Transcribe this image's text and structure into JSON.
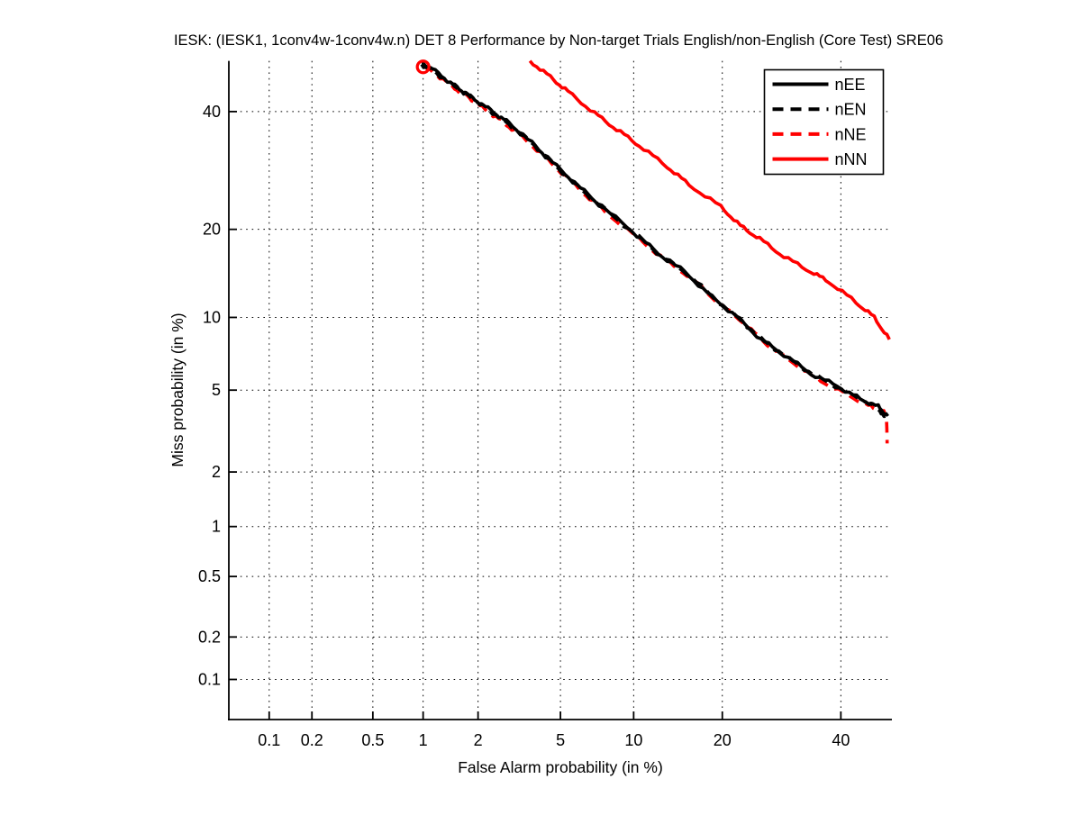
{
  "title": "IESK: (IESK1, 1conv4w-1conv4w.n) DET 8 Performance by Non-target Trials English/non-English (Core Test) SRE06",
  "axes": {
    "x_label": "False Alarm probability (in %)",
    "y_label": "Miss probability (in %)",
    "tick_labels": [
      "0.1",
      "0.2",
      "0.5",
      "1",
      "2",
      "5",
      "10",
      "20",
      "40"
    ],
    "tick_values_pct": [
      0.1,
      0.2,
      0.5,
      1,
      2,
      5,
      10,
      20,
      40
    ],
    "axis_min_pct": 0.05,
    "axis_max_pct": 50
  },
  "legend": {
    "position": "top-right",
    "entries": [
      {
        "label": "nEE",
        "color": "#000000",
        "style": "solid"
      },
      {
        "label": "nEN",
        "color": "#000000",
        "style": "dashed"
      },
      {
        "label": "nNE",
        "color": "#ff0000",
        "style": "dashed"
      },
      {
        "label": "nNN",
        "color": "#ff0000",
        "style": "solid"
      }
    ]
  },
  "colors": {
    "background": "#ffffff",
    "text": "#000000",
    "grid": "#000000",
    "black_curve": "#000000",
    "red_curve": "#ff0000"
  },
  "chart_data": {
    "type": "line",
    "subtype": "DET curve, probit scale on both axes, dotted grid at labeled ticks",
    "title": "IESK: (IESK1, 1conv4w-1conv4w.n) DET 8 Performance by Non-target Trials English/non-English (Core Test) SRE06",
    "xlabel": "False Alarm probability (in %)",
    "ylabel": "Miss probability (in %)",
    "xlim_pct": [
      0.05,
      50
    ],
    "ylim_pct": [
      0.05,
      50
    ],
    "grid": "dotted",
    "legend_position": "top-right inside",
    "start_marker": {
      "series": "nNE",
      "shape": "open-circle",
      "color": "#ff0000",
      "fa_pct": 1.0,
      "miss_pct": 48.8
    },
    "series": [
      {
        "name": "nNN",
        "color": "#ff0000",
        "style": "solid",
        "points_fa_miss_pct": [
          [
            3.62,
            50.0
          ],
          [
            4.5,
            46.8
          ],
          [
            5.4,
            43.9
          ],
          [
            7.0,
            39.7
          ],
          [
            8.6,
            36.6
          ],
          [
            10.5,
            33.6
          ],
          [
            13.2,
            29.9
          ],
          [
            15.7,
            26.8
          ],
          [
            19.8,
            23.3
          ],
          [
            22.6,
            20.5
          ],
          [
            25.6,
            18.7
          ],
          [
            29.6,
            16.4
          ],
          [
            34.4,
            14.6
          ],
          [
            37.7,
            13.5
          ],
          [
            42.9,
            11.4
          ],
          [
            46.5,
            10.0
          ],
          [
            49.5,
            8.2
          ]
        ]
      },
      {
        "name": "nNE",
        "color": "#ff0000",
        "style": "dashed",
        "points_fa_miss_pct": [
          [
            1.0,
            48.8
          ],
          [
            1.2,
            47.2
          ],
          [
            1.5,
            44.6
          ],
          [
            1.8,
            42.6
          ],
          [
            2.1,
            40.8
          ],
          [
            2.55,
            38.6
          ],
          [
            3.05,
            36.4
          ],
          [
            3.9,
            32.9
          ],
          [
            4.85,
            29.5
          ],
          [
            6.2,
            25.7
          ],
          [
            7.7,
            22.6
          ],
          [
            10.4,
            18.8
          ],
          [
            13.0,
            16.0
          ],
          [
            16.0,
            13.9
          ],
          [
            19.5,
            11.3
          ],
          [
            23.0,
            9.6
          ],
          [
            26.8,
            7.8
          ],
          [
            30.6,
            6.75
          ],
          [
            35.4,
            5.6
          ],
          [
            40.4,
            4.9
          ],
          [
            44.8,
            4.3
          ],
          [
            47.9,
            4.0
          ],
          [
            48.9,
            3.9
          ],
          [
            49.0,
            3.3
          ],
          [
            49.05,
            2.8
          ]
        ]
      },
      {
        "name": "nEE",
        "color": "#000000",
        "style": "solid",
        "points_fa_miss_pct": [
          [
            0.98,
            49.5
          ],
          [
            1.13,
            48.4
          ],
          [
            1.42,
            45.7
          ],
          [
            1.68,
            43.8
          ],
          [
            1.98,
            42.0
          ],
          [
            2.4,
            39.9
          ],
          [
            2.87,
            37.8
          ],
          [
            3.7,
            34.1
          ],
          [
            4.6,
            30.6
          ],
          [
            5.9,
            26.8
          ],
          [
            7.3,
            23.7
          ],
          [
            9.9,
            19.7
          ],
          [
            12.3,
            16.8
          ],
          [
            15.2,
            14.6
          ],
          [
            18.6,
            11.9
          ],
          [
            22.0,
            10.1
          ],
          [
            25.8,
            8.2
          ],
          [
            29.6,
            7.1
          ],
          [
            34.4,
            5.9
          ],
          [
            39.4,
            5.2
          ],
          [
            43.8,
            4.55
          ],
          [
            47.3,
            4.2
          ],
          [
            49.2,
            3.8
          ]
        ]
      },
      {
        "name": "nEN",
        "color": "#000000",
        "style": "dashed",
        "points_fa_miss_pct": [
          [
            0.98,
            49.3
          ],
          [
            1.15,
            48.0
          ],
          [
            1.45,
            45.3
          ],
          [
            1.72,
            43.5
          ],
          [
            2.02,
            41.6
          ],
          [
            2.45,
            39.5
          ],
          [
            2.95,
            37.3
          ],
          [
            3.8,
            33.7
          ],
          [
            4.7,
            30.2
          ],
          [
            6.0,
            26.4
          ],
          [
            7.5,
            23.3
          ],
          [
            10.1,
            19.4
          ],
          [
            12.6,
            16.5
          ],
          [
            15.5,
            14.4
          ],
          [
            19.0,
            11.7
          ],
          [
            22.4,
            9.9
          ],
          [
            26.2,
            8.1
          ],
          [
            30.0,
            7.0
          ],
          [
            34.8,
            5.85
          ],
          [
            39.8,
            5.1
          ],
          [
            44.2,
            4.5
          ],
          [
            47.6,
            4.05
          ],
          [
            49.3,
            3.55
          ]
        ]
      }
    ]
  }
}
